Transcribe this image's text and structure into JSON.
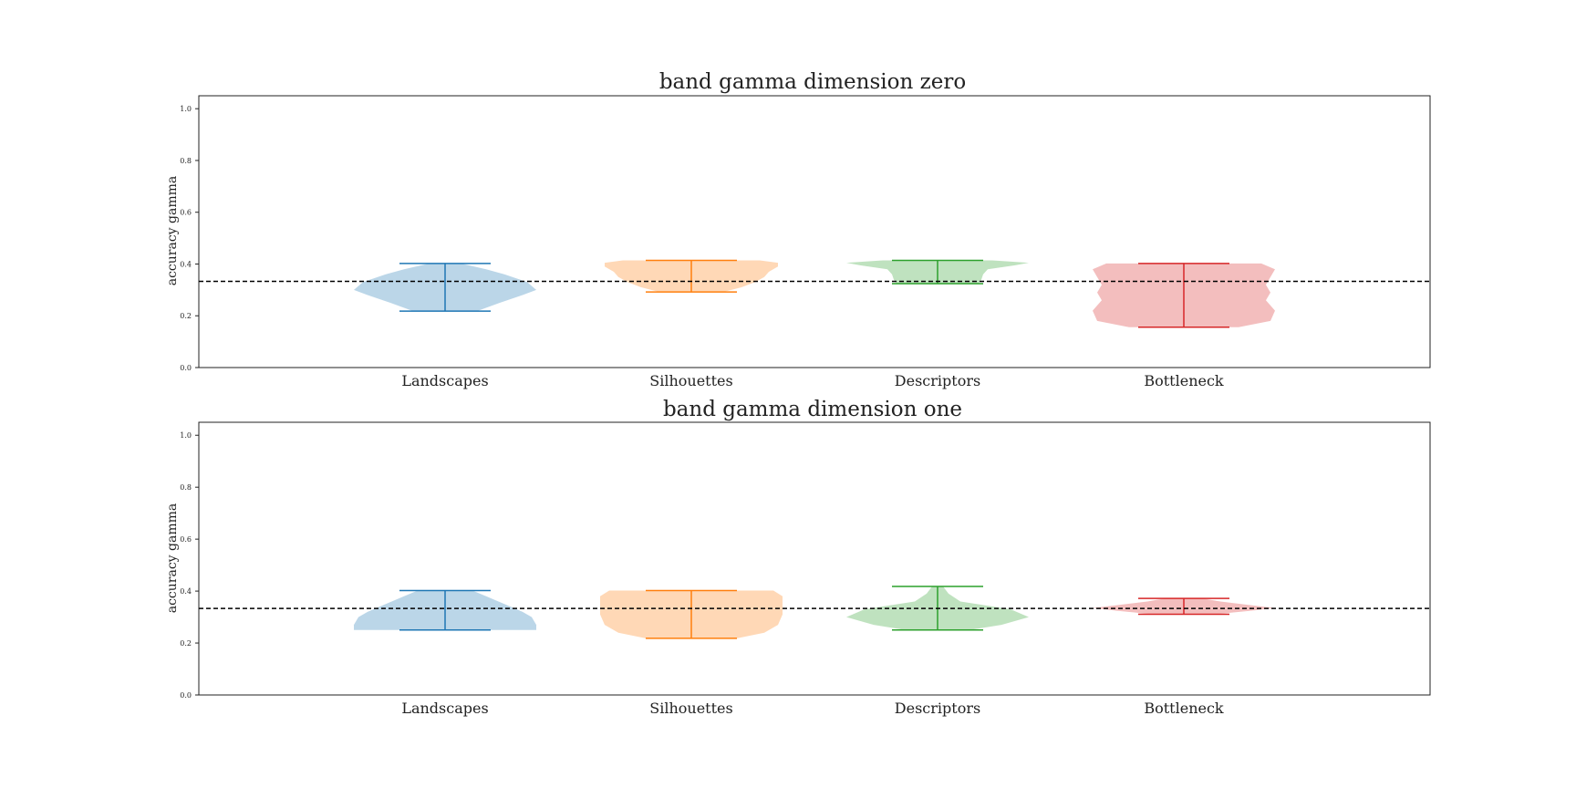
{
  "chart_data": [
    {
      "type": "violin",
      "title": "band gamma dimension zero",
      "ylabel": "accuracy gamma",
      "categories": [
        "Landscapes",
        "Silhouettes",
        "Descriptors",
        "Bottleneck"
      ],
      "yticks": [
        "0.0",
        "0.2",
        "0.4",
        "0.6",
        "0.8",
        "1.0"
      ],
      "ylim": [
        0,
        1.05
      ],
      "baseline": 0.333,
      "colors": [
        "#1f77b4",
        "#ff7f0e",
        "#2ca02c",
        "#d62728"
      ],
      "violins": [
        {
          "name": "Landscapes",
          "min": 0.218,
          "max": 0.402,
          "profile": [
            [
              0.218,
              0.35
            ],
            [
              0.25,
              0.6
            ],
            [
              0.28,
              0.85
            ],
            [
              0.3,
              1.0
            ],
            [
              0.33,
              0.9
            ],
            [
              0.36,
              0.65
            ],
            [
              0.38,
              0.45
            ],
            [
              0.4,
              0.2
            ],
            [
              0.402,
              0.15
            ]
          ]
        },
        {
          "name": "Silhouettes",
          "min": 0.292,
          "max": 0.414,
          "profile": [
            [
              0.292,
              0.35
            ],
            [
              0.31,
              0.55
            ],
            [
              0.33,
              0.7
            ],
            [
              0.35,
              0.8
            ],
            [
              0.37,
              0.85
            ],
            [
              0.39,
              0.95
            ],
            [
              0.405,
              0.95
            ],
            [
              0.414,
              0.75
            ]
          ]
        },
        {
          "name": "Descriptors",
          "min": 0.324,
          "max": 0.414,
          "profile": [
            [
              0.324,
              0.45
            ],
            [
              0.34,
              0.48
            ],
            [
              0.36,
              0.5
            ],
            [
              0.38,
              0.55
            ],
            [
              0.395,
              0.85
            ],
            [
              0.405,
              1.0
            ],
            [
              0.414,
              0.6
            ]
          ]
        },
        {
          "name": "Bottleneck",
          "min": 0.156,
          "max": 0.402,
          "profile": [
            [
              0.156,
              0.6
            ],
            [
              0.18,
              0.95
            ],
            [
              0.22,
              1.0
            ],
            [
              0.26,
              0.9
            ],
            [
              0.29,
              0.95
            ],
            [
              0.32,
              0.9
            ],
            [
              0.35,
              0.95
            ],
            [
              0.38,
              1.0
            ],
            [
              0.402,
              0.85
            ]
          ]
        }
      ]
    },
    {
      "type": "violin",
      "title": "band gamma dimension one",
      "ylabel": "accuracy gamma",
      "categories": [
        "Landscapes",
        "Silhouettes",
        "Descriptors",
        "Bottleneck"
      ],
      "yticks": [
        "0.0",
        "0.2",
        "0.4",
        "0.6",
        "0.8",
        "1.0"
      ],
      "ylim": [
        0,
        1.05
      ],
      "baseline": 0.333,
      "colors": [
        "#1f77b4",
        "#ff7f0e",
        "#2ca02c",
        "#d62728"
      ],
      "violins": [
        {
          "name": "Landscapes",
          "min": 0.25,
          "max": 0.402,
          "profile": [
            [
              0.25,
              1.0
            ],
            [
              0.27,
              1.0
            ],
            [
              0.3,
              0.95
            ],
            [
              0.32,
              0.85
            ],
            [
              0.35,
              0.65
            ],
            [
              0.38,
              0.45
            ],
            [
              0.402,
              0.3
            ]
          ]
        },
        {
          "name": "Silhouettes",
          "min": 0.218,
          "max": 0.402,
          "profile": [
            [
              0.218,
              0.5
            ],
            [
              0.24,
              0.8
            ],
            [
              0.27,
              0.95
            ],
            [
              0.31,
              1.0
            ],
            [
              0.35,
              1.0
            ],
            [
              0.38,
              1.0
            ],
            [
              0.402,
              0.9
            ]
          ]
        },
        {
          "name": "Descriptors",
          "min": 0.25,
          "max": 0.418,
          "profile": [
            [
              0.25,
              0.35
            ],
            [
              0.27,
              0.7
            ],
            [
              0.3,
              1.0
            ],
            [
              0.33,
              0.8
            ],
            [
              0.36,
              0.25
            ],
            [
              0.39,
              0.12
            ],
            [
              0.418,
              0.06
            ]
          ]
        },
        {
          "name": "Bottleneck",
          "min": 0.311,
          "max": 0.372,
          "profile": [
            [
              0.311,
              0.35
            ],
            [
              0.325,
              0.75
            ],
            [
              0.335,
              1.0
            ],
            [
              0.345,
              0.75
            ],
            [
              0.36,
              0.4
            ],
            [
              0.372,
              0.2
            ]
          ]
        }
      ]
    }
  ]
}
